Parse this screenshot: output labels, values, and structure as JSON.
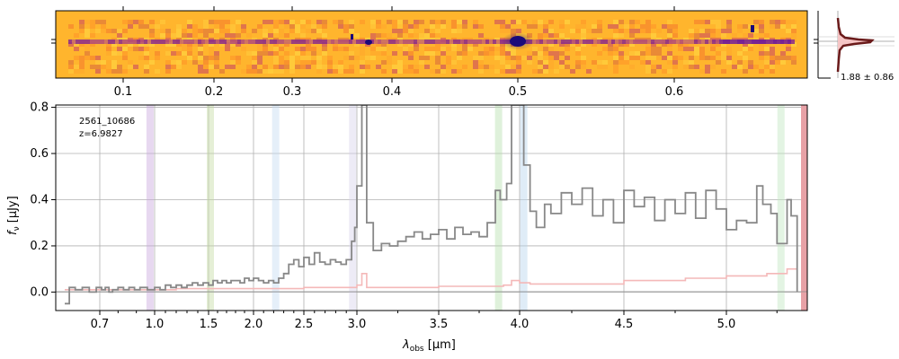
{
  "chart_data": {
    "type": "line",
    "object_id": "2561_10686",
    "redshift_label": "z=6.9827",
    "xlabel_main": "λ",
    "xlabel_sub": "obs",
    "xlabel_unit": " [μm]",
    "ylabel_main": "f",
    "ylabel_sub": "ν",
    "ylabel_unit": " [μJy]",
    "ylim": [
      -0.08,
      0.81
    ],
    "y_ticks": [
      "0.0",
      "0.2",
      "0.4",
      "0.6",
      "0.8"
    ],
    "y_tick_values": [
      0.0,
      0.2,
      0.4,
      0.6,
      0.8
    ],
    "x_ticks": [
      "0.7",
      "1.0",
      "1.5",
      "2.0",
      "2.5",
      "3.0",
      "3.5",
      "4.0",
      "4.5",
      "5.0"
    ],
    "x_tick_values": [
      0.7,
      1.0,
      1.5,
      2.0,
      2.5,
      3.0,
      3.5,
      4.0,
      4.5,
      5.0
    ],
    "top_ticks": [
      "0.1",
      "0.2",
      "0.3",
      "0.4",
      "0.5",
      "0.6"
    ],
    "top_tick_values": [
      0.1,
      0.2,
      0.3,
      0.4,
      0.5,
      0.6
    ],
    "profile_label": "1.88 ± 0.86",
    "lines": [
      {
        "x": 0.975,
        "color": "#c9a8dd"
      },
      {
        "x": 1.52,
        "color": "#c5dba4"
      },
      {
        "x": 2.22,
        "color": "#c6dcf2"
      },
      {
        "x": 2.96,
        "color": "#d6d3ec"
      },
      {
        "x": 3.87,
        "color": "#b8e0b0"
      },
      {
        "x": 4.02,
        "color": "#b9d5ee"
      },
      {
        "x": 5.27,
        "color": "#c2e6c0"
      }
    ],
    "series": [
      {
        "name": "flux",
        "color": "#888888",
        "points": [
          [
            0.6,
            -0.05
          ],
          [
            0.613,
            0.02
          ],
          [
            0.63,
            0.01
          ],
          [
            0.65,
            0.02
          ],
          [
            0.67,
            0.0
          ],
          [
            0.69,
            0.02
          ],
          [
            0.71,
            0.01
          ],
          [
            0.73,
            0.02
          ],
          [
            0.75,
            0.0
          ],
          [
            0.77,
            0.01
          ],
          [
            0.8,
            0.02
          ],
          [
            0.83,
            0.01
          ],
          [
            0.86,
            0.02
          ],
          [
            0.89,
            0.01
          ],
          [
            0.92,
            0.02
          ],
          [
            0.96,
            0.01
          ],
          [
            1.0,
            0.02
          ],
          [
            1.05,
            0.01
          ],
          [
            1.1,
            0.03
          ],
          [
            1.15,
            0.02
          ],
          [
            1.2,
            0.03
          ],
          [
            1.25,
            0.02
          ],
          [
            1.3,
            0.03
          ],
          [
            1.35,
            0.04
          ],
          [
            1.4,
            0.03
          ],
          [
            1.45,
            0.04
          ],
          [
            1.5,
            0.03
          ],
          [
            1.55,
            0.05
          ],
          [
            1.6,
            0.04
          ],
          [
            1.65,
            0.05
          ],
          [
            1.7,
            0.04
          ],
          [
            1.75,
            0.05
          ],
          [
            1.8,
            0.05
          ],
          [
            1.85,
            0.04
          ],
          [
            1.9,
            0.06
          ],
          [
            1.95,
            0.05
          ],
          [
            2.0,
            0.06
          ],
          [
            2.05,
            0.05
          ],
          [
            2.1,
            0.04
          ],
          [
            2.15,
            0.05
          ],
          [
            2.2,
            0.04
          ],
          [
            2.25,
            0.06
          ],
          [
            2.3,
            0.08
          ],
          [
            2.35,
            0.12
          ],
          [
            2.4,
            0.14
          ],
          [
            2.45,
            0.11
          ],
          [
            2.5,
            0.15
          ],
          [
            2.55,
            0.12
          ],
          [
            2.6,
            0.17
          ],
          [
            2.65,
            0.13
          ],
          [
            2.7,
            0.12
          ],
          [
            2.75,
            0.14
          ],
          [
            2.8,
            0.13
          ],
          [
            2.85,
            0.12
          ],
          [
            2.9,
            0.14
          ],
          [
            2.95,
            0.22
          ],
          [
            2.98,
            0.28
          ],
          [
            3.0,
            0.46
          ],
          [
            3.03,
            0.81
          ],
          [
            3.06,
            0.3
          ],
          [
            3.1,
            0.18
          ],
          [
            3.15,
            0.21
          ],
          [
            3.2,
            0.2
          ],
          [
            3.25,
            0.22
          ],
          [
            3.3,
            0.24
          ],
          [
            3.35,
            0.26
          ],
          [
            3.4,
            0.23
          ],
          [
            3.45,
            0.25
          ],
          [
            3.5,
            0.27
          ],
          [
            3.55,
            0.23
          ],
          [
            3.6,
            0.28
          ],
          [
            3.65,
            0.25
          ],
          [
            3.7,
            0.26
          ],
          [
            3.75,
            0.24
          ],
          [
            3.8,
            0.3
          ],
          [
            3.85,
            0.44
          ],
          [
            3.88,
            0.4
          ],
          [
            3.92,
            0.47
          ],
          [
            3.95,
            0.81
          ],
          [
            4.0,
            0.81
          ],
          [
            4.02,
            0.55
          ],
          [
            4.05,
            0.35
          ],
          [
            4.08,
            0.28
          ],
          [
            4.12,
            0.38
          ],
          [
            4.15,
            0.34
          ],
          [
            4.2,
            0.43
          ],
          [
            4.25,
            0.38
          ],
          [
            4.3,
            0.45
          ],
          [
            4.35,
            0.33
          ],
          [
            4.4,
            0.4
          ],
          [
            4.45,
            0.3
          ],
          [
            4.5,
            0.44
          ],
          [
            4.55,
            0.37
          ],
          [
            4.6,
            0.41
          ],
          [
            4.65,
            0.31
          ],
          [
            4.7,
            0.4
          ],
          [
            4.75,
            0.34
          ],
          [
            4.8,
            0.43
          ],
          [
            4.85,
            0.32
          ],
          [
            4.9,
            0.44
          ],
          [
            4.95,
            0.36
          ],
          [
            5.0,
            0.27
          ],
          [
            5.05,
            0.31
          ],
          [
            5.1,
            0.3
          ],
          [
            5.15,
            0.46
          ],
          [
            5.18,
            0.38
          ],
          [
            5.22,
            0.34
          ],
          [
            5.25,
            0.21
          ],
          [
            5.3,
            0.4
          ],
          [
            5.32,
            0.33
          ],
          [
            5.35,
            0.0
          ]
        ]
      },
      {
        "name": "error",
        "color": "#f4b8b8",
        "points": [
          [
            0.6,
            0.01
          ],
          [
            0.8,
            0.01
          ],
          [
            1.0,
            0.01
          ],
          [
            1.2,
            0.015
          ],
          [
            1.5,
            0.015
          ],
          [
            2.0,
            0.015
          ],
          [
            2.5,
            0.02
          ],
          [
            2.95,
            0.02
          ],
          [
            3.0,
            0.03
          ],
          [
            3.03,
            0.08
          ],
          [
            3.06,
            0.02
          ],
          [
            3.5,
            0.025
          ],
          [
            3.9,
            0.03
          ],
          [
            3.95,
            0.05
          ],
          [
            4.0,
            0.04
          ],
          [
            4.05,
            0.035
          ],
          [
            4.5,
            0.05
          ],
          [
            4.8,
            0.06
          ],
          [
            5.0,
            0.07
          ],
          [
            5.2,
            0.08
          ],
          [
            5.3,
            0.1
          ],
          [
            5.35,
            0.1
          ]
        ]
      }
    ]
  }
}
